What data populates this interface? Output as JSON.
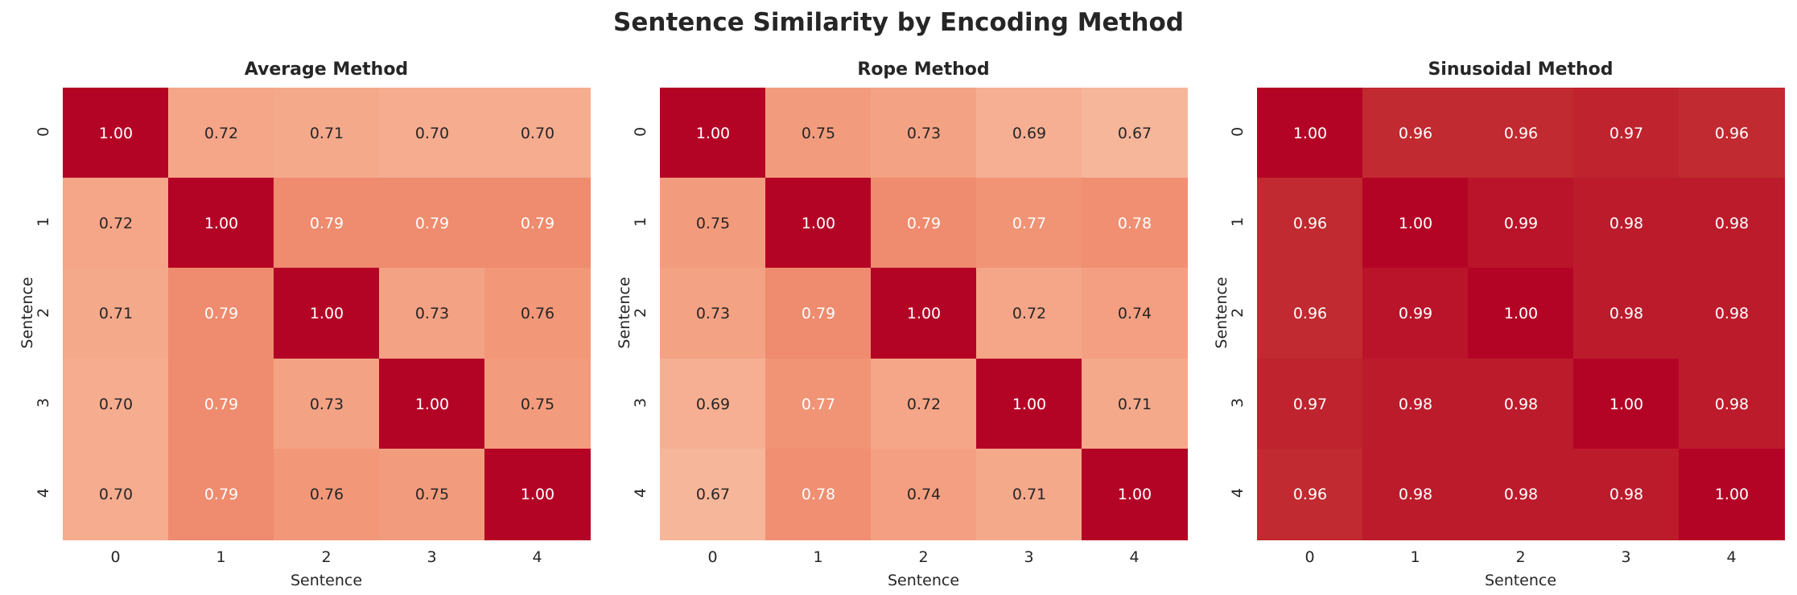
{
  "chart_data": {
    "title": "Sentence Similarity by Encoding Method",
    "type": "heatmap",
    "colormap": "coolwarm",
    "vlim": [
      0,
      1
    ],
    "panels": [
      {
        "title": "Average Method",
        "xlabel": "Sentence",
        "ylabel": "Sentence",
        "xticks": [
          "0",
          "1",
          "2",
          "3",
          "4"
        ],
        "yticks": [
          "0",
          "1",
          "2",
          "3",
          "4"
        ],
        "values": [
          [
            1.0,
            0.72,
            0.71,
            0.7,
            0.7
          ],
          [
            0.72,
            1.0,
            0.79,
            0.79,
            0.79
          ],
          [
            0.71,
            0.79,
            1.0,
            0.73,
            0.76
          ],
          [
            0.7,
            0.79,
            0.73,
            1.0,
            0.75
          ],
          [
            0.7,
            0.79,
            0.76,
            0.75,
            1.0
          ]
        ]
      },
      {
        "title": "Rope Method",
        "xlabel": "Sentence",
        "ylabel": "Sentence",
        "xticks": [
          "0",
          "1",
          "2",
          "3",
          "4"
        ],
        "yticks": [
          "0",
          "1",
          "2",
          "3",
          "4"
        ],
        "values": [
          [
            1.0,
            0.75,
            0.73,
            0.69,
            0.67
          ],
          [
            0.75,
            1.0,
            0.79,
            0.77,
            0.78
          ],
          [
            0.73,
            0.79,
            1.0,
            0.72,
            0.74
          ],
          [
            0.69,
            0.77,
            0.72,
            1.0,
            0.71
          ],
          [
            0.67,
            0.78,
            0.74,
            0.71,
            1.0
          ]
        ]
      },
      {
        "title": "Sinusoidal Method",
        "xlabel": "Sentence",
        "ylabel": "Sentence",
        "xticks": [
          "0",
          "1",
          "2",
          "3",
          "4"
        ],
        "yticks": [
          "0",
          "1",
          "2",
          "3",
          "4"
        ],
        "values": [
          [
            1.0,
            0.96,
            0.96,
            0.97,
            0.96
          ],
          [
            0.96,
            1.0,
            0.99,
            0.98,
            0.98
          ],
          [
            0.96,
            0.99,
            1.0,
            0.98,
            0.98
          ],
          [
            0.97,
            0.98,
            0.98,
            1.0,
            0.98
          ],
          [
            0.96,
            0.98,
            0.98,
            0.98,
            1.0
          ]
        ]
      }
    ]
  }
}
